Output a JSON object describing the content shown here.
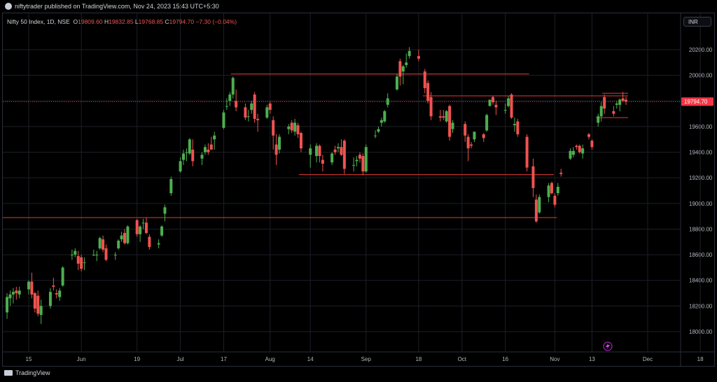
{
  "header": {
    "published": "niftytrader published on TradingView.com, Nov 24, 2023 15:43 UTC+5:30"
  },
  "legend": {
    "symbol": "Nifty 50 Index, 1D, NSE",
    "open_label": "O",
    "open": "19809.60",
    "high_label": "H",
    "high": "19832.85",
    "low_label": "L",
    "low": "19768.85",
    "close_label": "C",
    "close": "19794.70",
    "change": "−7.30 (−0.04%)"
  },
  "currency_button": "INR",
  "footer": {
    "brand": "TradingView"
  },
  "colors": {
    "up": "#26a69a",
    "up_body": "#4caf50",
    "down": "#ef5350",
    "level_line": "#e53935",
    "price_tag": "#f23645"
  },
  "chart_data": {
    "type": "candlestick",
    "symbol": "Nifty 50 Index",
    "interval": "1D",
    "exchange": "NSE",
    "ylim": [
      17850,
      20350
    ],
    "y_ticks": [
      "18000.00",
      "18200.00",
      "18400.00",
      "18600.00",
      "18800.00",
      "19000.00",
      "19200.00",
      "19400.00",
      "19600.00",
      "19800.00",
      "20000.00",
      "20200.00"
    ],
    "x_tick_labels": [
      "15",
      "Jun",
      "19",
      "Jul",
      "17",
      "Aug",
      "14",
      "Sep",
      "18",
      "Oct",
      "16",
      "Nov",
      "13",
      "Dec",
      "18"
    ],
    "x_tick_dates": [
      "2023-05-15",
      "2023-06-01",
      "2023-06-19",
      "2023-07-03",
      "2023-07-17",
      "2023-08-01",
      "2023-08-14",
      "2023-09-01",
      "2023-09-18",
      "2023-10-02",
      "2023-10-16",
      "2023-11-01",
      "2023-11-13",
      "2023-12-01",
      "2023-12-18"
    ],
    "last_price": 19794.7,
    "last_price_label": "19794.70",
    "candles": [
      {
        "date": "2023-05-08",
        "o": 18150,
        "h": 18300,
        "l": 18100,
        "c": 18270
      },
      {
        "date": "2023-05-09",
        "o": 18260,
        "h": 18320,
        "l": 18200,
        "c": 18290
      },
      {
        "date": "2023-05-10",
        "o": 18290,
        "h": 18340,
        "l": 18220,
        "c": 18310
      },
      {
        "date": "2023-05-11",
        "o": 18320,
        "h": 18350,
        "l": 18250,
        "c": 18300
      },
      {
        "date": "2023-05-12",
        "o": 18290,
        "h": 18350,
        "l": 18260,
        "c": 18320
      },
      {
        "date": "2023-05-15",
        "o": 18330,
        "h": 18400,
        "l": 18290,
        "c": 18390
      },
      {
        "date": "2023-05-16",
        "o": 18390,
        "h": 18460,
        "l": 18260,
        "c": 18290
      },
      {
        "date": "2023-05-17",
        "o": 18300,
        "h": 18310,
        "l": 18150,
        "c": 18180
      },
      {
        "date": "2023-05-18",
        "o": 18280,
        "h": 18320,
        "l": 18120,
        "c": 18140
      },
      {
        "date": "2023-05-19",
        "o": 18130,
        "h": 18250,
        "l": 18060,
        "c": 18200
      },
      {
        "date": "2023-05-22",
        "o": 18200,
        "h": 18340,
        "l": 18180,
        "c": 18310
      },
      {
        "date": "2023-05-23",
        "o": 18360,
        "h": 18420,
        "l": 18320,
        "c": 18350
      },
      {
        "date": "2023-05-24",
        "o": 18300,
        "h": 18330,
        "l": 18260,
        "c": 18290
      },
      {
        "date": "2023-05-25",
        "o": 18270,
        "h": 18340,
        "l": 18240,
        "c": 18320
      },
      {
        "date": "2023-05-26",
        "o": 18360,
        "h": 18510,
        "l": 18350,
        "c": 18500
      },
      {
        "date": "2023-05-29",
        "o": 18600,
        "h": 18640,
        "l": 18560,
        "c": 18600
      },
      {
        "date": "2023-05-30",
        "o": 18600,
        "h": 18650,
        "l": 18580,
        "c": 18630
      },
      {
        "date": "2023-05-31",
        "o": 18590,
        "h": 18630,
        "l": 18480,
        "c": 18530
      },
      {
        "date": "2023-06-01",
        "o": 18580,
        "h": 18600,
        "l": 18470,
        "c": 18490
      },
      {
        "date": "2023-06-02",
        "o": 18540,
        "h": 18580,
        "l": 18480,
        "c": 18540
      },
      {
        "date": "2023-06-05",
        "o": 18600,
        "h": 18640,
        "l": 18590,
        "c": 18600
      },
      {
        "date": "2023-06-06",
        "o": 18600,
        "h": 18630,
        "l": 18550,
        "c": 18600
      },
      {
        "date": "2023-06-07",
        "o": 18650,
        "h": 18740,
        "l": 18640,
        "c": 18730
      },
      {
        "date": "2023-06-08",
        "o": 18720,
        "h": 18750,
        "l": 18620,
        "c": 18640
      },
      {
        "date": "2023-06-09",
        "o": 18650,
        "h": 18680,
        "l": 18550,
        "c": 18560
      },
      {
        "date": "2023-06-12",
        "o": 18600,
        "h": 18620,
        "l": 18560,
        "c": 18600
      },
      {
        "date": "2023-06-13",
        "o": 18650,
        "h": 18720,
        "l": 18640,
        "c": 18710
      },
      {
        "date": "2023-06-14",
        "o": 18720,
        "h": 18780,
        "l": 18700,
        "c": 18750
      },
      {
        "date": "2023-06-15",
        "o": 18770,
        "h": 18800,
        "l": 18680,
        "c": 18690
      },
      {
        "date": "2023-06-16",
        "o": 18690,
        "h": 18830,
        "l": 18680,
        "c": 18820
      },
      {
        "date": "2023-06-19",
        "o": 18870,
        "h": 18880,
        "l": 18740,
        "c": 18760
      },
      {
        "date": "2023-06-20",
        "o": 18760,
        "h": 18830,
        "l": 18700,
        "c": 18820
      },
      {
        "date": "2023-06-21",
        "o": 18850,
        "h": 18880,
        "l": 18800,
        "c": 18850
      },
      {
        "date": "2023-06-22",
        "o": 18850,
        "h": 18890,
        "l": 18760,
        "c": 18770
      },
      {
        "date": "2023-06-23",
        "o": 18740,
        "h": 18760,
        "l": 18640,
        "c": 18660
      },
      {
        "date": "2023-06-26",
        "o": 18680,
        "h": 18720,
        "l": 18650,
        "c": 18690
      },
      {
        "date": "2023-06-27",
        "o": 18750,
        "h": 18830,
        "l": 18740,
        "c": 18820
      },
      {
        "date": "2023-06-28",
        "o": 18920,
        "h": 18990,
        "l": 18860,
        "c": 18970
      },
      {
        "date": "2023-06-30",
        "o": 19080,
        "h": 19210,
        "l": 19060,
        "c": 19190
      },
      {
        "date": "2023-07-03",
        "o": 19250,
        "h": 19360,
        "l": 19240,
        "c": 19330
      },
      {
        "date": "2023-07-04",
        "o": 19340,
        "h": 19420,
        "l": 19300,
        "c": 19390
      },
      {
        "date": "2023-07-05",
        "o": 19400,
        "h": 19430,
        "l": 19330,
        "c": 19400
      },
      {
        "date": "2023-07-06",
        "o": 19390,
        "h": 19510,
        "l": 19380,
        "c": 19500
      },
      {
        "date": "2023-07-07",
        "o": 19420,
        "h": 19500,
        "l": 19290,
        "c": 19330
      },
      {
        "date": "2023-07-10",
        "o": 19350,
        "h": 19400,
        "l": 19300,
        "c": 19380
      },
      {
        "date": "2023-07-11",
        "o": 19400,
        "h": 19460,
        "l": 19380,
        "c": 19440
      },
      {
        "date": "2023-07-12",
        "o": 19420,
        "h": 19470,
        "l": 19380,
        "c": 19400
      },
      {
        "date": "2023-07-13",
        "o": 19460,
        "h": 19520,
        "l": 19430,
        "c": 19420
      },
      {
        "date": "2023-07-14",
        "o": 19500,
        "h": 19560,
        "l": 19420,
        "c": 19530
      },
      {
        "date": "2023-07-17",
        "o": 19590,
        "h": 19730,
        "l": 19580,
        "c": 19710
      },
      {
        "date": "2023-07-18",
        "o": 19760,
        "h": 19820,
        "l": 19730,
        "c": 19760
      },
      {
        "date": "2023-07-19",
        "o": 19800,
        "h": 19870,
        "l": 19760,
        "c": 19850
      },
      {
        "date": "2023-07-20",
        "o": 19850,
        "h": 19990,
        "l": 19820,
        "c": 19980
      },
      {
        "date": "2023-07-21",
        "o": 19800,
        "h": 19890,
        "l": 19720,
        "c": 19750
      },
      {
        "date": "2023-07-24",
        "o": 19750,
        "h": 19780,
        "l": 19650,
        "c": 19670
      },
      {
        "date": "2023-07-25",
        "o": 19680,
        "h": 19730,
        "l": 19640,
        "c": 19680
      },
      {
        "date": "2023-07-26",
        "o": 19730,
        "h": 19800,
        "l": 19700,
        "c": 19780
      },
      {
        "date": "2023-07-27",
        "o": 19850,
        "h": 19870,
        "l": 19630,
        "c": 19660
      },
      {
        "date": "2023-07-28",
        "o": 19660,
        "h": 19700,
        "l": 19560,
        "c": 19650
      },
      {
        "date": "2023-07-31",
        "o": 19670,
        "h": 19770,
        "l": 19660,
        "c": 19750
      },
      {
        "date": "2023-08-01",
        "o": 19780,
        "h": 19800,
        "l": 19700,
        "c": 19730
      },
      {
        "date": "2023-08-02",
        "o": 19650,
        "h": 19680,
        "l": 19420,
        "c": 19530
      },
      {
        "date": "2023-08-03",
        "o": 19460,
        "h": 19540,
        "l": 19300,
        "c": 19380
      },
      {
        "date": "2023-08-04",
        "o": 19420,
        "h": 19540,
        "l": 19390,
        "c": 19520
      },
      {
        "date": "2023-08-07",
        "o": 19580,
        "h": 19620,
        "l": 19540,
        "c": 19600
      },
      {
        "date": "2023-08-08",
        "o": 19630,
        "h": 19650,
        "l": 19550,
        "c": 19570
      },
      {
        "date": "2023-08-09",
        "o": 19560,
        "h": 19660,
        "l": 19530,
        "c": 19630
      },
      {
        "date": "2023-08-10",
        "o": 19610,
        "h": 19630,
        "l": 19510,
        "c": 19540
      },
      {
        "date": "2023-08-11",
        "o": 19550,
        "h": 19560,
        "l": 19400,
        "c": 19430
      },
      {
        "date": "2023-08-14",
        "o": 19380,
        "h": 19460,
        "l": 19280,
        "c": 19430
      },
      {
        "date": "2023-08-16",
        "o": 19370,
        "h": 19470,
        "l": 19320,
        "c": 19450
      },
      {
        "date": "2023-08-17",
        "o": 19450,
        "h": 19460,
        "l": 19320,
        "c": 19370
      },
      {
        "date": "2023-08-18",
        "o": 19340,
        "h": 19380,
        "l": 19250,
        "c": 19310
      },
      {
        "date": "2023-08-21",
        "o": 19320,
        "h": 19400,
        "l": 19300,
        "c": 19390
      },
      {
        "date": "2023-08-22",
        "o": 19420,
        "h": 19450,
        "l": 19380,
        "c": 19400
      },
      {
        "date": "2023-08-23",
        "o": 19430,
        "h": 19470,
        "l": 19400,
        "c": 19440
      },
      {
        "date": "2023-08-24",
        "o": 19440,
        "h": 19500,
        "l": 19370,
        "c": 19380
      },
      {
        "date": "2023-08-25",
        "o": 19490,
        "h": 19500,
        "l": 19230,
        "c": 19270
      },
      {
        "date": "2023-08-28",
        "o": 19300,
        "h": 19360,
        "l": 19250,
        "c": 19300
      },
      {
        "date": "2023-08-29",
        "o": 19330,
        "h": 19370,
        "l": 19290,
        "c": 19340
      },
      {
        "date": "2023-08-30",
        "o": 19380,
        "h": 19400,
        "l": 19320,
        "c": 19350
      },
      {
        "date": "2023-08-31",
        "o": 19370,
        "h": 19390,
        "l": 19220,
        "c": 19250
      },
      {
        "date": "2023-09-01",
        "o": 19250,
        "h": 19460,
        "l": 19240,
        "c": 19440
      },
      {
        "date": "2023-09-04",
        "o": 19530,
        "h": 19570,
        "l": 19510,
        "c": 19530
      },
      {
        "date": "2023-09-05",
        "o": 19560,
        "h": 19600,
        "l": 19550,
        "c": 19580
      },
      {
        "date": "2023-09-06",
        "o": 19630,
        "h": 19670,
        "l": 19600,
        "c": 19650
      },
      {
        "date": "2023-09-07",
        "o": 19640,
        "h": 19730,
        "l": 19630,
        "c": 19720
      },
      {
        "date": "2023-09-08",
        "o": 19770,
        "h": 19860,
        "l": 19750,
        "c": 19820
      },
      {
        "date": "2023-09-11",
        "o": 19890,
        "h": 20010,
        "l": 19880,
        "c": 19990
      },
      {
        "date": "2023-09-12",
        "o": 20110,
        "h": 20130,
        "l": 19920,
        "c": 19990
      },
      {
        "date": "2023-09-13",
        "o": 20030,
        "h": 20080,
        "l": 19930,
        "c": 20070
      },
      {
        "date": "2023-09-14",
        "o": 20080,
        "h": 20170,
        "l": 20060,
        "c": 20100
      },
      {
        "date": "2023-09-15",
        "o": 20150,
        "h": 20220,
        "l": 20130,
        "c": 20190
      },
      {
        "date": "2023-09-18",
        "o": 20150,
        "h": 20200,
        "l": 20110,
        "c": 20130
      },
      {
        "date": "2023-09-20",
        "o": 20030,
        "h": 20050,
        "l": 19860,
        "c": 19900
      },
      {
        "date": "2023-09-21",
        "o": 19940,
        "h": 19960,
        "l": 19780,
        "c": 19800
      },
      {
        "date": "2023-09-22",
        "o": 19830,
        "h": 19870,
        "l": 19650,
        "c": 19680
      },
      {
        "date": "2023-09-25",
        "o": 19680,
        "h": 19730,
        "l": 19640,
        "c": 19670
      },
      {
        "date": "2023-09-26",
        "o": 19680,
        "h": 19730,
        "l": 19650,
        "c": 19670
      },
      {
        "date": "2023-09-27",
        "o": 19640,
        "h": 19730,
        "l": 19630,
        "c": 19720
      },
      {
        "date": "2023-09-28",
        "o": 19760,
        "h": 19770,
        "l": 19490,
        "c": 19520
      },
      {
        "date": "2023-09-29",
        "o": 19580,
        "h": 19650,
        "l": 19550,
        "c": 19630
      },
      {
        "date": "2023-10-03",
        "o": 19620,
        "h": 19640,
        "l": 19480,
        "c": 19530
      },
      {
        "date": "2023-10-04",
        "o": 19520,
        "h": 19540,
        "l": 19330,
        "c": 19430
      },
      {
        "date": "2023-10-05",
        "o": 19460,
        "h": 19480,
        "l": 19430,
        "c": 19450
      },
      {
        "date": "2023-10-06",
        "o": 19500,
        "h": 19560,
        "l": 19480,
        "c": 19560
      },
      {
        "date": "2023-10-09",
        "o": 19540,
        "h": 19550,
        "l": 19480,
        "c": 19510
      },
      {
        "date": "2023-10-10",
        "o": 19570,
        "h": 19700,
        "l": 19560,
        "c": 19690
      },
      {
        "date": "2023-10-11",
        "o": 19760,
        "h": 19810,
        "l": 19760,
        "c": 19810
      },
      {
        "date": "2023-10-12",
        "o": 19830,
        "h": 19840,
        "l": 19770,
        "c": 19790
      },
      {
        "date": "2023-10-13",
        "o": 19770,
        "h": 19800,
        "l": 19690,
        "c": 19750
      },
      {
        "date": "2023-10-16",
        "o": 19730,
        "h": 19780,
        "l": 19700,
        "c": 19730
      },
      {
        "date": "2023-10-17",
        "o": 19760,
        "h": 19840,
        "l": 19750,
        "c": 19820
      },
      {
        "date": "2023-10-18",
        "o": 19850,
        "h": 19860,
        "l": 19660,
        "c": 19670
      },
      {
        "date": "2023-10-19",
        "o": 19610,
        "h": 19670,
        "l": 19560,
        "c": 19620
      },
      {
        "date": "2023-10-20",
        "o": 19640,
        "h": 19660,
        "l": 19520,
        "c": 19540
      },
      {
        "date": "2023-10-23",
        "o": 19520,
        "h": 19540,
        "l": 19250,
        "c": 19280
      },
      {
        "date": "2023-10-25",
        "o": 19290,
        "h": 19350,
        "l": 19050,
        "c": 19120
      },
      {
        "date": "2023-10-26",
        "o": 19030,
        "h": 19070,
        "l": 18850,
        "c": 18860
      },
      {
        "date": "2023-10-27",
        "o": 18930,
        "h": 19070,
        "l": 18920,
        "c": 19050
      },
      {
        "date": "2023-10-30",
        "o": 19050,
        "h": 19160,
        "l": 19010,
        "c": 19140
      },
      {
        "date": "2023-10-31",
        "o": 19160,
        "h": 19170,
        "l": 19070,
        "c": 19080
      },
      {
        "date": "2023-11-01",
        "o": 19060,
        "h": 19080,
        "l": 18970,
        "c": 18990
      },
      {
        "date": "2023-11-02",
        "o": 19080,
        "h": 19160,
        "l": 19060,
        "c": 19130
      },
      {
        "date": "2023-11-03",
        "o": 19240,
        "h": 19270,
        "l": 19210,
        "c": 19230
      },
      {
        "date": "2023-11-06",
        "o": 19350,
        "h": 19430,
        "l": 19340,
        "c": 19410
      },
      {
        "date": "2023-11-07",
        "o": 19380,
        "h": 19440,
        "l": 19360,
        "c": 19410
      },
      {
        "date": "2023-11-08",
        "o": 19450,
        "h": 19460,
        "l": 19420,
        "c": 19440
      },
      {
        "date": "2023-11-09",
        "o": 19450,
        "h": 19460,
        "l": 19390,
        "c": 19400
      },
      {
        "date": "2023-11-10",
        "o": 19390,
        "h": 19460,
        "l": 19350,
        "c": 19430
      },
      {
        "date": "2023-11-12",
        "o": 19540,
        "h": 19550,
        "l": 19500,
        "c": 19520
      },
      {
        "date": "2023-11-13",
        "o": 19490,
        "h": 19500,
        "l": 19420,
        "c": 19440
      },
      {
        "date": "2023-11-15",
        "o": 19630,
        "h": 19700,
        "l": 19600,
        "c": 19680
      },
      {
        "date": "2023-11-16",
        "o": 19680,
        "h": 19790,
        "l": 19640,
        "c": 19760
      },
      {
        "date": "2023-11-17",
        "o": 19830,
        "h": 19850,
        "l": 19700,
        "c": 19740
      },
      {
        "date": "2023-11-20",
        "o": 19720,
        "h": 19760,
        "l": 19680,
        "c": 19700
      },
      {
        "date": "2023-11-21",
        "o": 19770,
        "h": 19800,
        "l": 19740,
        "c": 19780
      },
      {
        "date": "2023-11-22",
        "o": 19770,
        "h": 19820,
        "l": 19720,
        "c": 19810
      },
      {
        "date": "2023-11-23",
        "o": 19820,
        "h": 19870,
        "l": 19790,
        "c": 19800
      },
      {
        "date": "2023-11-24",
        "o": 19809.6,
        "h": 19832.85,
        "l": 19768.85,
        "c": 19794.7
      }
    ],
    "level_lines": [
      {
        "from": "2023-07-20",
        "to": "2023-10-23",
        "y": 20010
      },
      {
        "from": "2023-09-20",
        "to": "2023-11-24",
        "y": 19840
      },
      {
        "from": "2023-11-17",
        "to": "2023-11-24",
        "y": 19860
      },
      {
        "from": "2023-11-15",
        "to": "2023-11-24",
        "y": 19670
      },
      {
        "from": "2023-08-11",
        "to": "2023-10-31",
        "y": 19225
      },
      {
        "from": "2023-05-06",
        "to": "2023-11-01",
        "y": 18890
      }
    ]
  }
}
